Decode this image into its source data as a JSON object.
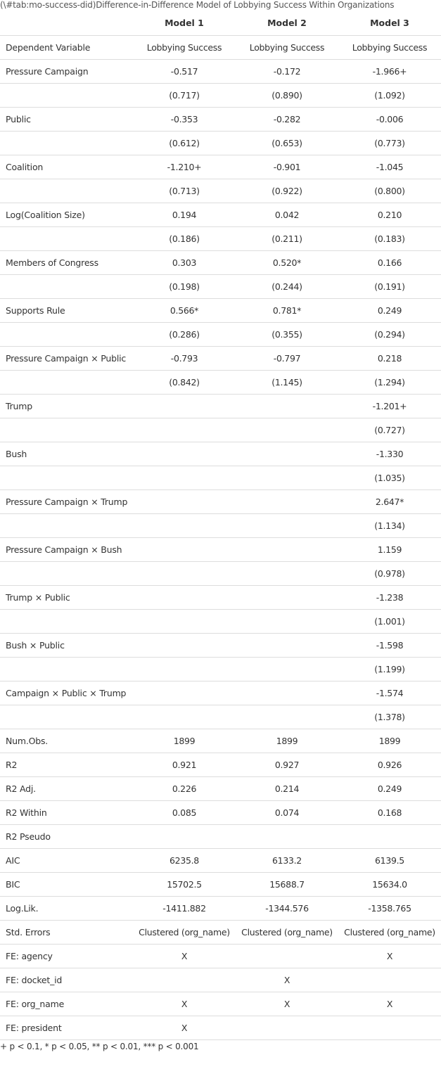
{
  "caption": "(\\#tab:mo-success-did)Difference-in-Difference Model of Lobbying Success Within Organizations",
  "columns": [
    "",
    "Model 1",
    "Model 2",
    "Model 3"
  ],
  "rows": [
    [
      "Dependent Variable",
      "Lobbying Success",
      "Lobbying Success",
      "Lobbying Success"
    ],
    [
      "Pressure Campaign",
      "-0.517",
      "-0.172",
      "-1.966+"
    ],
    [
      "",
      "(0.717)",
      "(0.890)",
      "(1.092)"
    ],
    [
      "Public",
      "-0.353",
      "-0.282",
      "-0.006"
    ],
    [
      "",
      "(0.612)",
      "(0.653)",
      "(0.773)"
    ],
    [
      "Coalition",
      "-1.210+",
      "-0.901",
      "-1.045"
    ],
    [
      "",
      "(0.713)",
      "(0.922)",
      "(0.800)"
    ],
    [
      "Log(Coalition Size)",
      "0.194",
      "0.042",
      "0.210"
    ],
    [
      "",
      "(0.186)",
      "(0.211)",
      "(0.183)"
    ],
    [
      "Members of Congress",
      "0.303",
      "0.520*",
      "0.166"
    ],
    [
      "",
      "(0.198)",
      "(0.244)",
      "(0.191)"
    ],
    [
      "Supports Rule",
      "0.566*",
      "0.781*",
      "0.249"
    ],
    [
      "",
      "(0.286)",
      "(0.355)",
      "(0.294)"
    ],
    [
      "Pressure Campaign × Public",
      "-0.793",
      "-0.797",
      "0.218"
    ],
    [
      "",
      "(0.842)",
      "(1.145)",
      "(1.294)"
    ],
    [
      "Trump",
      "",
      "",
      "-1.201+"
    ],
    [
      "",
      "",
      "",
      "(0.727)"
    ],
    [
      "Bush",
      "",
      "",
      "-1.330"
    ],
    [
      "",
      "",
      "",
      "(1.035)"
    ],
    [
      "Pressure Campaign × Trump",
      "",
      "",
      "2.647*"
    ],
    [
      "",
      "",
      "",
      "(1.134)"
    ],
    [
      "Pressure Campaign × Bush",
      "",
      "",
      "1.159"
    ],
    [
      "",
      "",
      "",
      "(0.978)"
    ],
    [
      "Trump × Public",
      "",
      "",
      "-1.238"
    ],
    [
      "",
      "",
      "",
      "(1.001)"
    ],
    [
      "Bush × Public",
      "",
      "",
      "-1.598"
    ],
    [
      "",
      "",
      "",
      "(1.199)"
    ],
    [
      "Campaign × Public × Trump",
      "",
      "",
      "-1.574"
    ],
    [
      "",
      "",
      "",
      "(1.378)"
    ],
    [
      "Num.Obs.",
      "1899",
      "1899",
      "1899"
    ],
    [
      "R2",
      "0.921",
      "0.927",
      "0.926"
    ],
    [
      "R2 Adj.",
      "0.226",
      "0.214",
      "0.249"
    ],
    [
      "R2 Within",
      "0.085",
      "0.074",
      "0.168"
    ],
    [
      "R2 Pseudo",
      "",
      "",
      ""
    ],
    [
      "AIC",
      "6235.8",
      "6133.2",
      "6139.5"
    ],
    [
      "BIC",
      "15702.5",
      "15688.7",
      "15634.0"
    ],
    [
      "Log.Lik.",
      "-1411.882",
      "-1344.576",
      "-1358.765"
    ],
    [
      "Std. Errors",
      "Clustered (org_name)",
      "Clustered (org_name)",
      "Clustered (org_name)"
    ],
    [
      "FE: agency",
      "X",
      "",
      "X"
    ],
    [
      "FE: docket_id",
      "",
      "X",
      ""
    ],
    [
      "FE: org_name",
      "X",
      "X",
      "X"
    ],
    [
      "FE: president",
      "X",
      "",
      ""
    ]
  ],
  "footnote": "+ p < 0.1, * p < 0.05, ** p < 0.01, *** p < 0.001"
}
